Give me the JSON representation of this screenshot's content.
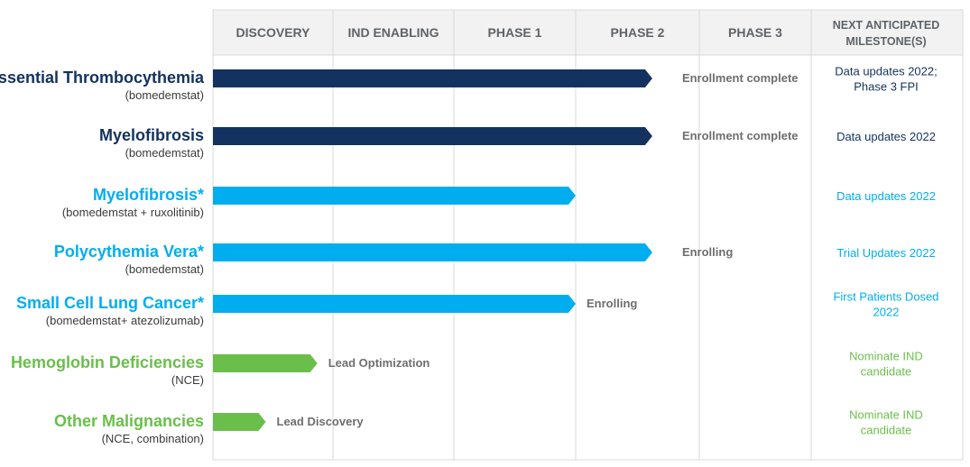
{
  "chart_data": {
    "type": "table",
    "columns": [
      "DISCOVERY",
      "IND ENABLING",
      "PHASE 1",
      "PHASE 2",
      "PHASE 3"
    ],
    "milestone_header": [
      "NEXT ANTICIPATED",
      "MILESTONE(S)"
    ],
    "colors": {
      "dark_navy": "#13325f",
      "light_blue": "#00aeef",
      "green": "#6abf4b",
      "grid": "#d9d9d9",
      "header_bg": "#f2f2f2"
    },
    "rows": [
      {
        "name": "Essential Thrombocythemia",
        "sub": "(bomedemstat)",
        "color": "#13325f",
        "progress": 3.62,
        "status": "Enrollment complete",
        "status_stage": 4,
        "milestone": [
          "Data updates 2022;",
          "Phase 3 FPI"
        ],
        "milestone_color": "#13325f"
      },
      {
        "name": "Myelofibrosis",
        "sub": "(bomedemstat)",
        "color": "#13325f",
        "progress": 3.62,
        "status": "Enrollment complete",
        "status_stage": 4,
        "milestone": [
          "Data updates 2022"
        ],
        "milestone_color": "#13325f"
      },
      {
        "name": "Myelofibrosis*",
        "sub": "(bomedemstat + ruxolitinib)",
        "color": "#00aeef",
        "progress": 3.0,
        "status": "",
        "status_stage": 3,
        "milestone": [
          "Data updates 2022"
        ],
        "milestone_color": "#00aeef"
      },
      {
        "name": "Polycythemia Vera*",
        "sub": "(bomedemstat)",
        "color": "#00aeef",
        "progress": 3.62,
        "status": "Enrolling",
        "status_stage": 4,
        "milestone": [
          "Trial Updates 2022"
        ],
        "milestone_color": "#00aeef"
      },
      {
        "name": "Small Cell Lung Cancer*",
        "sub": "(bomedemstat+ atezolizumab)",
        "color": "#00aeef",
        "progress": 3.0,
        "status": "Enrolling",
        "status_stage": 3,
        "milestone": [
          "First Patients Dosed",
          "2022"
        ],
        "milestone_color": "#00aeef"
      },
      {
        "name": "Hemoglobin Deficiencies",
        "sub": "(NCE)",
        "color": "#6abf4b",
        "progress": 0.87,
        "status": "Lead Optimization",
        "status_stage": 1,
        "milestone": [
          "Nominate IND",
          "candidate"
        ],
        "milestone_color": "#6abf4b"
      },
      {
        "name": "Other Malignancies",
        "sub": "(NCE, combination)",
        "color": "#6abf4b",
        "progress": 0.44,
        "status": "Lead Discovery",
        "status_stage": 0.5,
        "milestone": [
          "Nominate IND",
          "candidate"
        ],
        "milestone_color": "#6abf4b"
      }
    ]
  }
}
